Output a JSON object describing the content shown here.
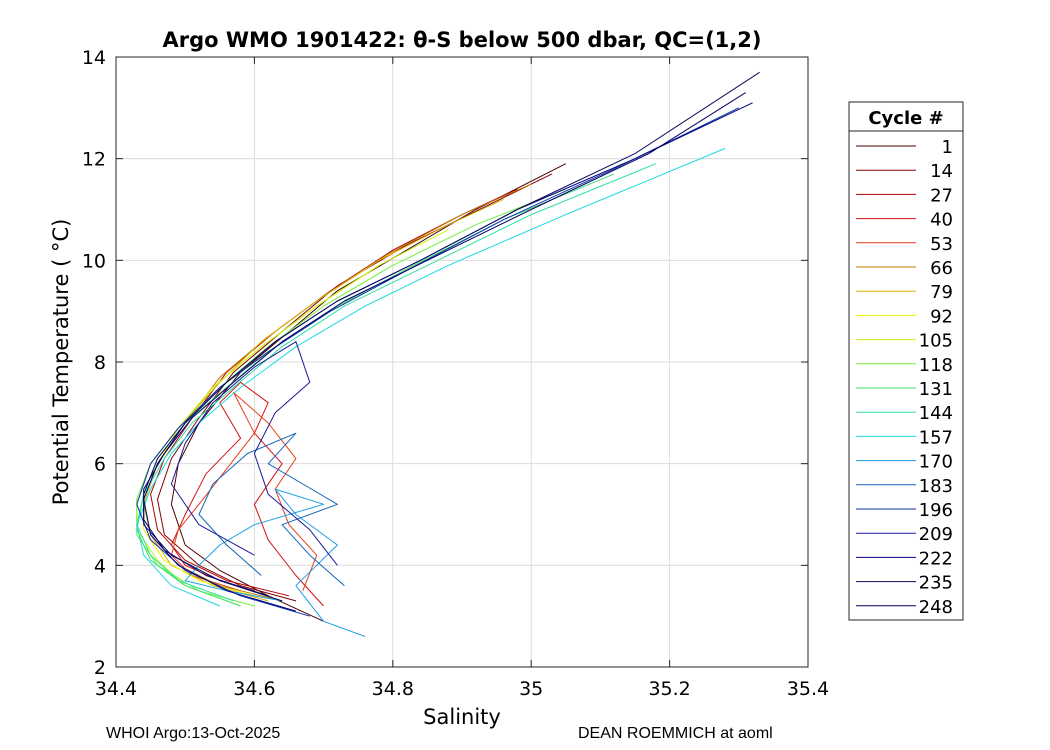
{
  "chart_data": {
    "type": "line",
    "title": "Argo WMO 1901422: θ-S below 500 dbar,  QC=(1,2)",
    "xlabel": "Salinity",
    "ylabel": "Potential Temperature ( °C)",
    "xlim": [
      34.4,
      35.4
    ],
    "ylim": [
      2,
      14
    ],
    "xticks": [
      "34.4",
      "34.6",
      "34.8",
      "35",
      "35.2",
      "35.4"
    ],
    "yticks": [
      "2",
      "4",
      "6",
      "8",
      "10",
      "12",
      "14"
    ],
    "grid": true,
    "legend": {
      "title": "Cycle #",
      "placement": "outside-right",
      "entries": [
        {
          "label": "1",
          "color": "#4d0000"
        },
        {
          "label": "14",
          "color": "#800000"
        },
        {
          "label": "27",
          "color": "#b30000"
        },
        {
          "label": "40",
          "color": "#d41010"
        },
        {
          "label": "53",
          "color": "#e63b1a"
        },
        {
          "label": "66",
          "color": "#c27a00"
        },
        {
          "label": "79",
          "color": "#d9b300"
        },
        {
          "label": "92",
          "color": "#f2f200"
        },
        {
          "label": "105",
          "color": "#c8f21a"
        },
        {
          "label": "118",
          "color": "#70f040"
        },
        {
          "label": "131",
          "color": "#3ce070"
        },
        {
          "label": "144",
          "color": "#2ee0a6"
        },
        {
          "label": "157",
          "color": "#1ad9e0"
        },
        {
          "label": "170",
          "color": "#1a9ee6"
        },
        {
          "label": "183",
          "color": "#1466b8"
        },
        {
          "label": "196",
          "color": "#0d2fa6"
        },
        {
          "label": "209",
          "color": "#1a1a99"
        },
        {
          "label": "222",
          "color": "#000080"
        },
        {
          "label": "235",
          "color": "#0a0a5c"
        },
        {
          "label": "248",
          "color": "#000066"
        }
      ]
    },
    "series": [
      {
        "name": "1",
        "color": "#4d0000",
        "x": [
          34.7,
          34.62,
          34.55,
          34.5,
          34.48,
          34.49,
          34.52,
          34.58,
          34.65,
          34.72,
          34.82,
          34.92,
          35.05
        ],
        "y": [
          2.9,
          3.4,
          3.9,
          4.4,
          5.2,
          6.0,
          6.8,
          7.8,
          8.6,
          9.4,
          10.2,
          11.0,
          11.9
        ]
      },
      {
        "name": "14",
        "color": "#800000",
        "x": [
          34.66,
          34.58,
          34.52,
          34.47,
          34.46,
          34.48,
          34.52,
          34.57,
          34.64,
          34.72,
          34.82,
          34.94,
          35.03
        ],
        "y": [
          3.3,
          3.6,
          4.0,
          4.6,
          5.3,
          6.1,
          6.9,
          7.8,
          8.6,
          9.5,
          10.3,
          11.1,
          11.7
        ]
      },
      {
        "name": "27",
        "color": "#b30000",
        "x": [
          34.65,
          34.56,
          34.5,
          34.46,
          34.45,
          34.47,
          34.51,
          34.56,
          34.63,
          34.71,
          34.8,
          34.9,
          34.98
        ],
        "y": [
          3.4,
          3.7,
          4.1,
          4.7,
          5.4,
          6.1,
          6.9,
          7.8,
          8.6,
          9.4,
          10.2,
          10.9,
          11.4
        ]
      },
      {
        "name": "40",
        "color": "#d41010",
        "x": [
          34.7,
          34.66,
          34.62,
          34.6,
          34.64,
          34.6,
          34.62,
          34.58,
          34.55,
          34.58,
          34.53,
          34.5,
          34.48,
          34.5,
          34.55,
          34.6
        ],
        "y": [
          3.2,
          3.8,
          4.5,
          5.2,
          6.0,
          6.6,
          7.2,
          7.6,
          7.2,
          6.5,
          5.8,
          5.0,
          4.4,
          4.0,
          3.7,
          3.5
        ]
      },
      {
        "name": "53",
        "color": "#e63b1a",
        "x": [
          34.67,
          34.69,
          34.65,
          34.63,
          34.66,
          34.62,
          34.57,
          34.6,
          34.56,
          34.52,
          34.49,
          34.48,
          34.51,
          34.58
        ],
        "y": [
          3.5,
          4.2,
          4.8,
          5.5,
          6.1,
          6.8,
          7.4,
          6.6,
          5.9,
          5.2,
          4.7,
          4.2,
          3.8,
          3.5
        ]
      },
      {
        "name": "66",
        "color": "#c27a00",
        "x": [
          34.64,
          34.55,
          34.49,
          34.45,
          34.44,
          34.46,
          34.5,
          34.55,
          34.62,
          34.7,
          34.79,
          34.9,
          35.0
        ],
        "y": [
          3.3,
          3.6,
          4.0,
          4.6,
          5.3,
          6.0,
          6.8,
          7.7,
          8.5,
          9.3,
          10.1,
          10.9,
          11.5
        ]
      },
      {
        "name": "79",
        "color": "#d9b300",
        "x": [
          34.62,
          34.54,
          34.48,
          34.45,
          34.44,
          34.46,
          34.49,
          34.55,
          34.61,
          34.69,
          34.78,
          34.88,
          34.96
        ],
        "y": [
          3.3,
          3.6,
          4.0,
          4.6,
          5.2,
          6.0,
          6.7,
          7.6,
          8.4,
          9.2,
          10.0,
          10.7,
          11.2
        ]
      },
      {
        "name": "92",
        "color": "#f2f200",
        "x": [
          34.6,
          34.52,
          34.47,
          34.44,
          34.44,
          34.46,
          34.49,
          34.54,
          34.61,
          34.69,
          34.78
        ],
        "y": [
          3.4,
          3.7,
          4.1,
          4.7,
          5.3,
          6.0,
          6.7,
          7.5,
          8.3,
          9.1,
          9.9
        ]
      },
      {
        "name": "105",
        "color": "#c8f21a",
        "x": [
          34.58,
          34.5,
          34.46,
          34.43,
          34.43,
          34.45,
          34.49,
          34.54,
          34.61,
          34.69,
          34.78,
          34.88
        ],
        "y": [
          3.2,
          3.6,
          4.1,
          4.7,
          5.3,
          6.0,
          6.7,
          7.5,
          8.3,
          9.1,
          9.9,
          10.6
        ]
      },
      {
        "name": "118",
        "color": "#70f040",
        "x": [
          34.6,
          34.52,
          34.46,
          34.43,
          34.43,
          34.45,
          34.49,
          34.55,
          34.62,
          34.7,
          34.8,
          34.92,
          35.05
        ],
        "y": [
          3.2,
          3.5,
          4.0,
          4.6,
          5.3,
          6.0,
          6.7,
          7.5,
          8.3,
          9.1,
          9.9,
          10.7,
          11.4
        ]
      },
      {
        "name": "131",
        "color": "#3ce070",
        "x": [
          34.58,
          34.5,
          34.45,
          34.43,
          34.44,
          34.46,
          34.5,
          34.56,
          34.63,
          34.72,
          34.83,
          34.96,
          35.12
        ],
        "y": [
          3.2,
          3.6,
          4.1,
          4.7,
          5.4,
          6.1,
          6.8,
          7.5,
          8.3,
          9.1,
          9.9,
          10.8,
          11.7
        ]
      },
      {
        "name": "144",
        "color": "#2ee0a6",
        "x": [
          34.57,
          34.49,
          34.45,
          34.43,
          34.44,
          34.47,
          34.51,
          34.57,
          34.64,
          34.73,
          34.85,
          35.0,
          35.18
        ],
        "y": [
          3.3,
          3.7,
          4.2,
          4.8,
          5.4,
          6.1,
          6.8,
          7.5,
          8.3,
          9.1,
          9.9,
          10.9,
          11.9
        ]
      },
      {
        "name": "157",
        "color": "#1ad9e0",
        "x": [
          34.55,
          34.48,
          34.44,
          34.43,
          34.45,
          34.48,
          34.52,
          34.58,
          34.66,
          34.76,
          34.88,
          35.05,
          35.28
        ],
        "y": [
          3.2,
          3.6,
          4.2,
          4.8,
          5.5,
          6.2,
          6.8,
          7.5,
          8.3,
          9.1,
          9.9,
          10.9,
          12.2
        ]
      },
      {
        "name": "170",
        "color": "#1a9ee6",
        "x": [
          34.76,
          34.7,
          34.66,
          34.72,
          34.66,
          34.63,
          34.7,
          34.6,
          34.55,
          34.52,
          34.5,
          34.56,
          34.64
        ],
        "y": [
          2.6,
          2.9,
          3.6,
          4.4,
          5.0,
          5.5,
          5.2,
          4.8,
          4.4,
          4.0,
          3.7,
          3.5,
          3.3
        ]
      },
      {
        "name": "183",
        "color": "#1466b8",
        "x": [
          34.73,
          34.68,
          34.64,
          34.72,
          34.67,
          34.62,
          34.66,
          34.59,
          34.54,
          34.52,
          34.56,
          34.61
        ],
        "y": [
          3.6,
          4.2,
          4.8,
          5.2,
          5.6,
          6.0,
          6.6,
          6.2,
          5.6,
          5.0,
          4.4,
          3.8
        ]
      },
      {
        "name": "196",
        "color": "#0d2fa6",
        "x": [
          34.68,
          34.58,
          34.5,
          34.45,
          34.43,
          34.45,
          34.49,
          34.55,
          34.62,
          34.71,
          34.82,
          34.96,
          35.12,
          35.3
        ],
        "y": [
          3.0,
          3.4,
          3.9,
          4.5,
          5.2,
          6.0,
          6.7,
          7.5,
          8.2,
          9.0,
          9.8,
          10.8,
          11.8,
          13.0
        ]
      },
      {
        "name": "209",
        "color": "#1a1a99",
        "x": [
          34.72,
          34.68,
          34.62,
          34.6,
          34.63,
          34.68,
          34.66,
          34.6,
          34.54,
          34.5,
          34.48,
          34.52,
          34.6
        ],
        "y": [
          4.0,
          4.7,
          5.4,
          6.2,
          7.0,
          7.6,
          8.4,
          7.9,
          7.2,
          6.4,
          5.6,
          4.8,
          4.2
        ]
      },
      {
        "name": "222",
        "color": "#000080",
        "x": [
          34.66,
          34.56,
          34.49,
          34.45,
          34.44,
          34.46,
          34.5,
          34.56,
          34.63,
          34.72,
          34.84,
          34.98,
          35.15,
          35.32
        ],
        "y": [
          3.1,
          3.5,
          4.0,
          4.6,
          5.3,
          6.0,
          6.8,
          7.6,
          8.4,
          9.2,
          10.0,
          11.0,
          12.0,
          13.1
        ]
      },
      {
        "name": "235",
        "color": "#0a0a5c",
        "x": [
          34.64,
          34.55,
          34.48,
          34.44,
          34.44,
          34.46,
          34.5,
          34.56,
          34.63,
          34.72,
          34.84,
          34.98,
          35.15,
          35.33
        ],
        "y": [
          3.3,
          3.7,
          4.2,
          4.8,
          5.4,
          6.1,
          6.8,
          7.6,
          8.4,
          9.2,
          10.0,
          11.0,
          12.1,
          13.7
        ]
      },
      {
        "name": "248",
        "color": "#000066",
        "x": [
          34.62,
          34.53,
          34.47,
          34.44,
          34.44,
          34.47,
          34.51,
          34.57,
          34.64,
          34.73,
          34.85,
          35.0,
          35.17,
          35.31
        ],
        "y": [
          3.4,
          3.8,
          4.3,
          4.9,
          5.5,
          6.2,
          6.9,
          7.6,
          8.4,
          9.2,
          10.0,
          11.0,
          12.1,
          13.3
        ]
      }
    ]
  },
  "footer": {
    "left": "WHOI Argo:13-Oct-2025",
    "right": "DEAN ROEMMICH at aoml"
  }
}
